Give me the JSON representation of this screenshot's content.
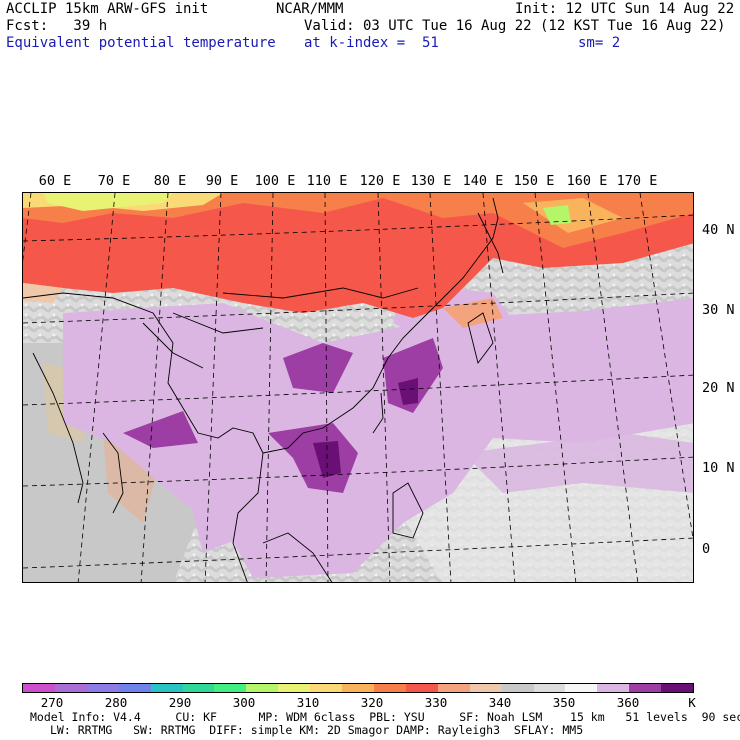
{
  "header": {
    "left_line1": "ACCLIP 15km ARW-GFS init",
    "left_line2": "Fcst:   39 h",
    "left_line3": "Equivalent potential temperature",
    "center_line1": "NCAR/MMM",
    "center_line2": "Valid: 03 UTC Tue 16 Aug 22 (12 KST Tue 16 Aug 22)",
    "center_line3_a": "at k-index =  51",
    "center_line3_b": "sm= 2",
    "right_line1": "Init: 12 UTC Sun 14 Aug 22"
  },
  "map": {
    "lon_labels": [
      "60 E",
      "70 E",
      "80 E",
      "90 E",
      "100 E",
      "110 E",
      "120 E",
      "130 E",
      "140 E",
      "150 E",
      "160 E",
      "170 E"
    ],
    "lat_labels": [
      "40 N",
      "30 N",
      "20 N",
      "10 N",
      "0"
    ]
  },
  "colorbar": {
    "colors": [
      "#cc4fcc",
      "#a86ed6",
      "#8c7ce6",
      "#6f83ea",
      "#28c3c3",
      "#2fd79a",
      "#43ee82",
      "#b4f56a",
      "#e9f373",
      "#fad977",
      "#f9b35c",
      "#f77f49",
      "#f5584a",
      "#f4a37f",
      "#eec8a8",
      "#c8c8c8",
      "#dcdcdc",
      "#f6f6f6",
      "#dbb6e2",
      "#9c3ea4",
      "#6a0f75"
    ],
    "labels": [
      "270",
      "280",
      "290",
      "300",
      "310",
      "320",
      "330",
      "340",
      "350",
      "360",
      "K"
    ]
  },
  "footer": {
    "line1": "Model Info: V4.4     CU: KF      MP: WDM 6class  PBL: YSU     SF: Noah LSM    15 km   51 levels  90 sec",
    "line2": "LW: RRTMG   SW: RRTMG  DIFF: simple KM: 2D Smagor DAMP: Rayleigh3  SFLAY: MM5"
  }
}
